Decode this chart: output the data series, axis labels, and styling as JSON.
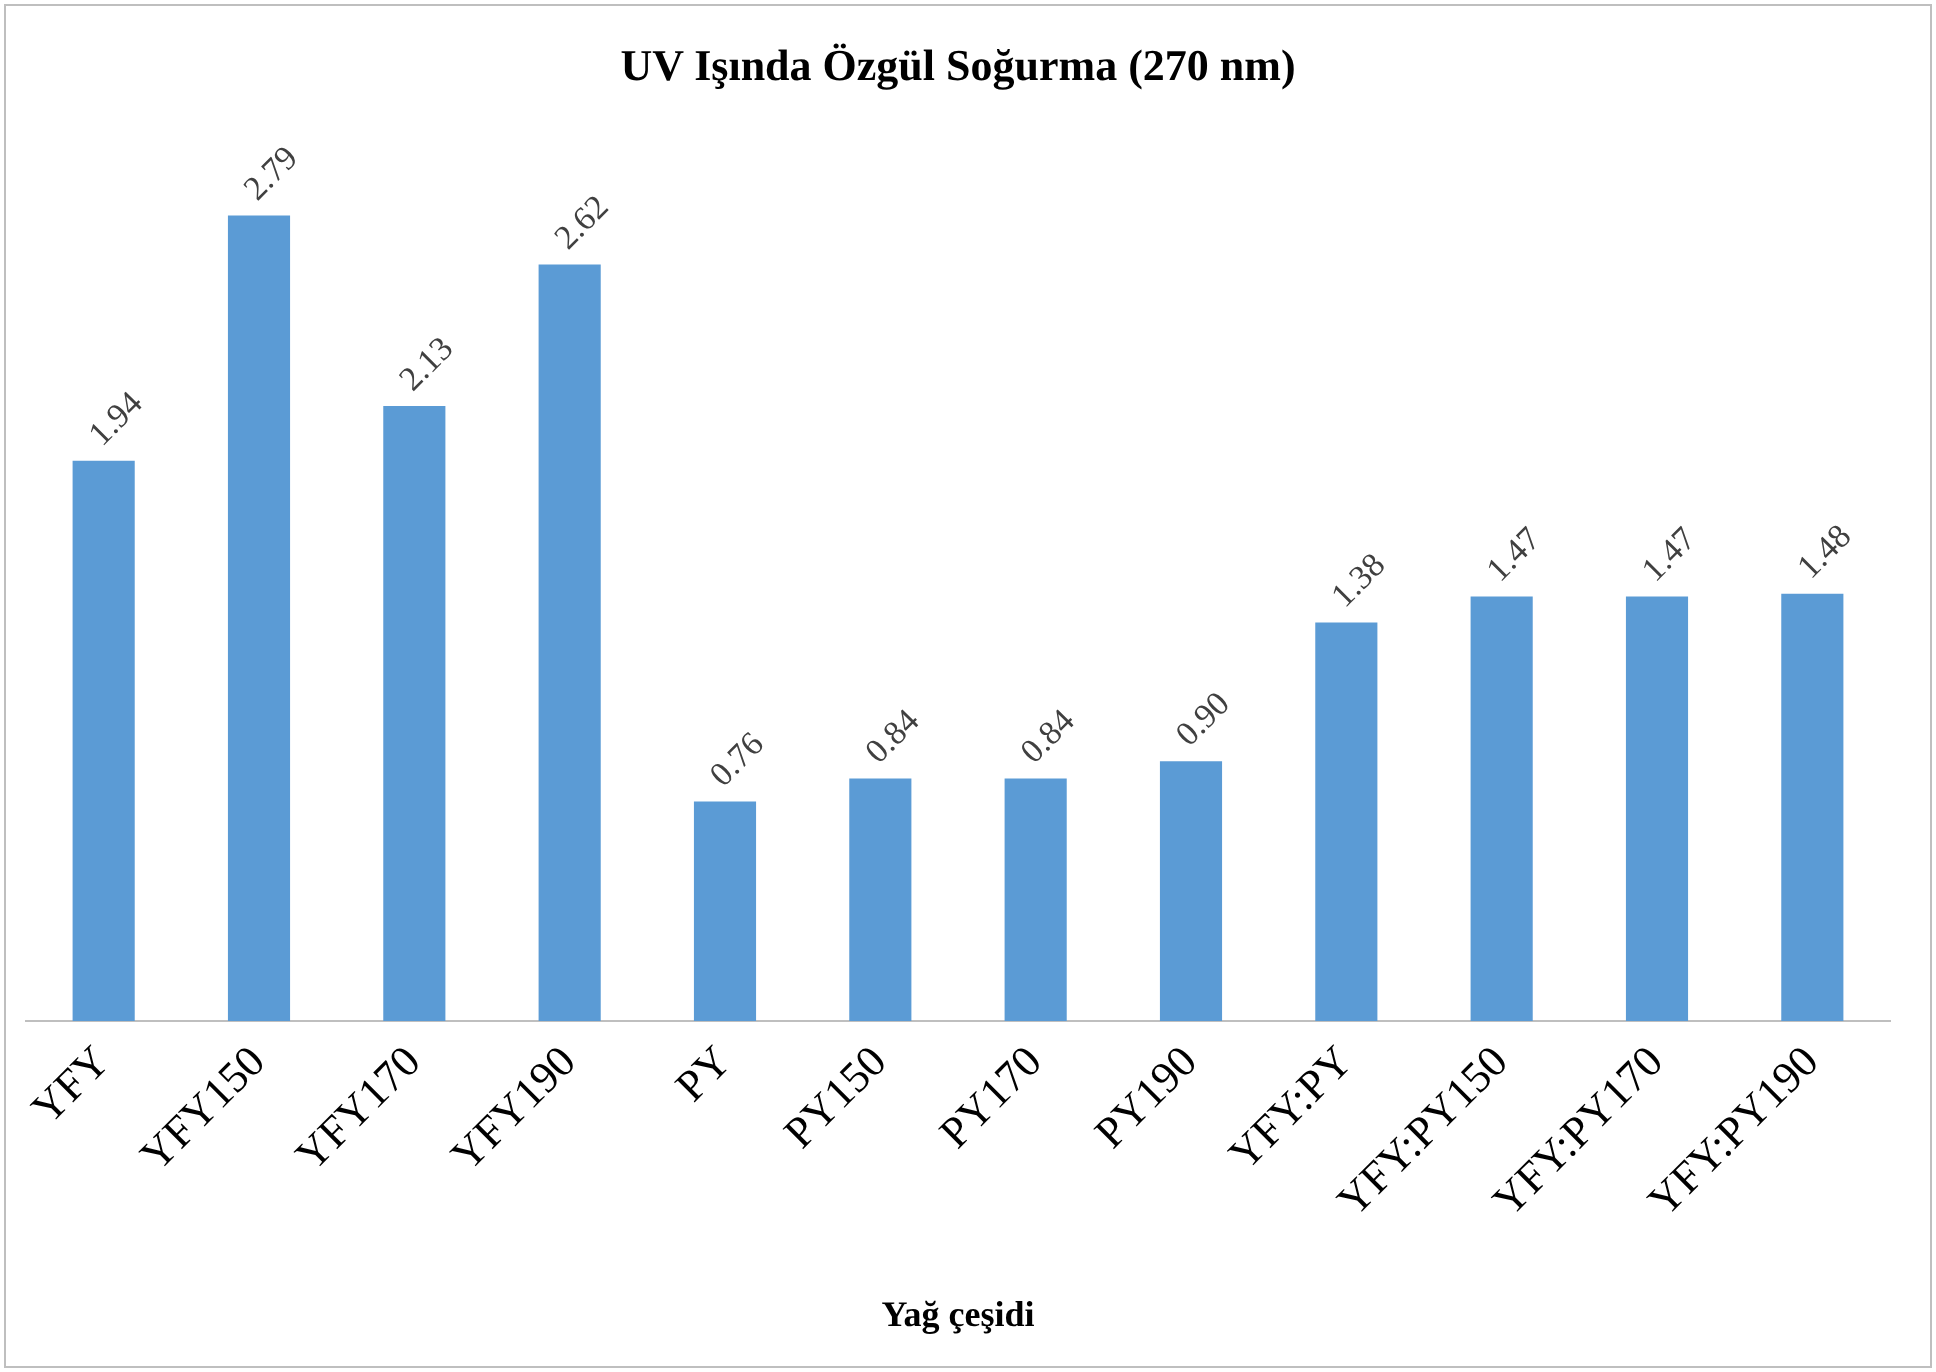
{
  "chart_data": {
    "type": "bar",
    "title": "UV Işında Özgül Soğurma (270 nm)",
    "xlabel": "Yağ çeşidi",
    "categories": [
      "YFY",
      "YFY150",
      "YFY170",
      "YFY190",
      "PY",
      "PY150",
      "PY170",
      "PY190",
      "YFY:PY",
      "YFY:PY150",
      "YFY:PY170",
      "YFY:PY190"
    ],
    "values": [
      1.94,
      2.79,
      2.13,
      2.62,
      0.76,
      0.84,
      0.84,
      0.9,
      1.38,
      1.47,
      1.47,
      1.48
    ],
    "value_labels": [
      "1.94",
      "2.79",
      "2.13",
      "2.62",
      "0.76",
      "0.84",
      "0.84",
      "0.90",
      "1.38",
      "1.47",
      "1.47",
      "1.48"
    ],
    "color": "#5b9bd5",
    "grid": false,
    "legend": false,
    "tick_labels": "x"
  }
}
